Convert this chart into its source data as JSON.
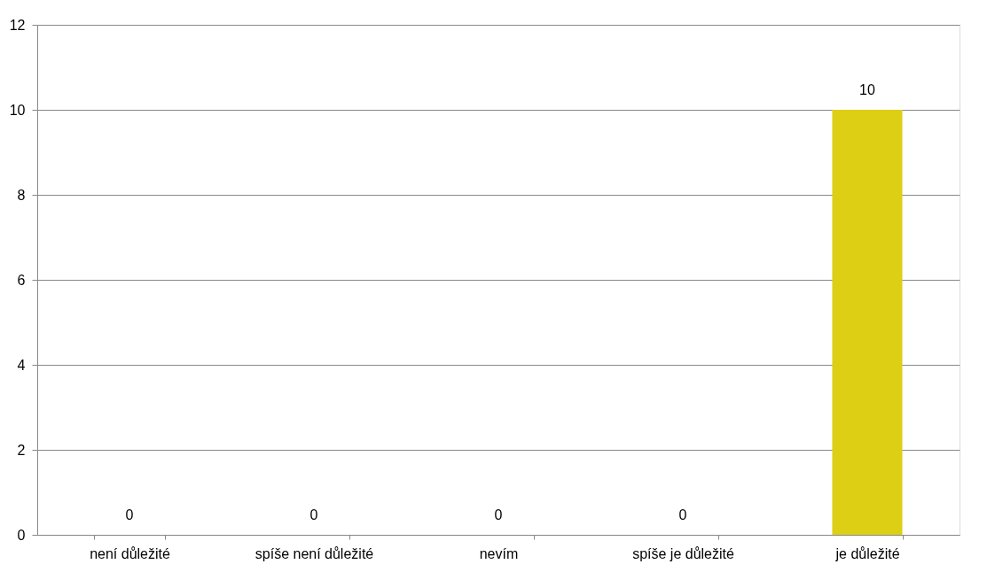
{
  "chart_data": {
    "type": "bar",
    "categories": [
      "není důležité",
      "spíše není důležité",
      "nevím",
      "spíše je důležité",
      "je důležité"
    ],
    "values": [
      0,
      0,
      0,
      0,
      10
    ],
    "color": "#dccf14",
    "ylim": [
      0,
      12
    ],
    "yticks": [
      0,
      2,
      4,
      6,
      8,
      10,
      12
    ],
    "grid": "y",
    "data_labels": true
  }
}
